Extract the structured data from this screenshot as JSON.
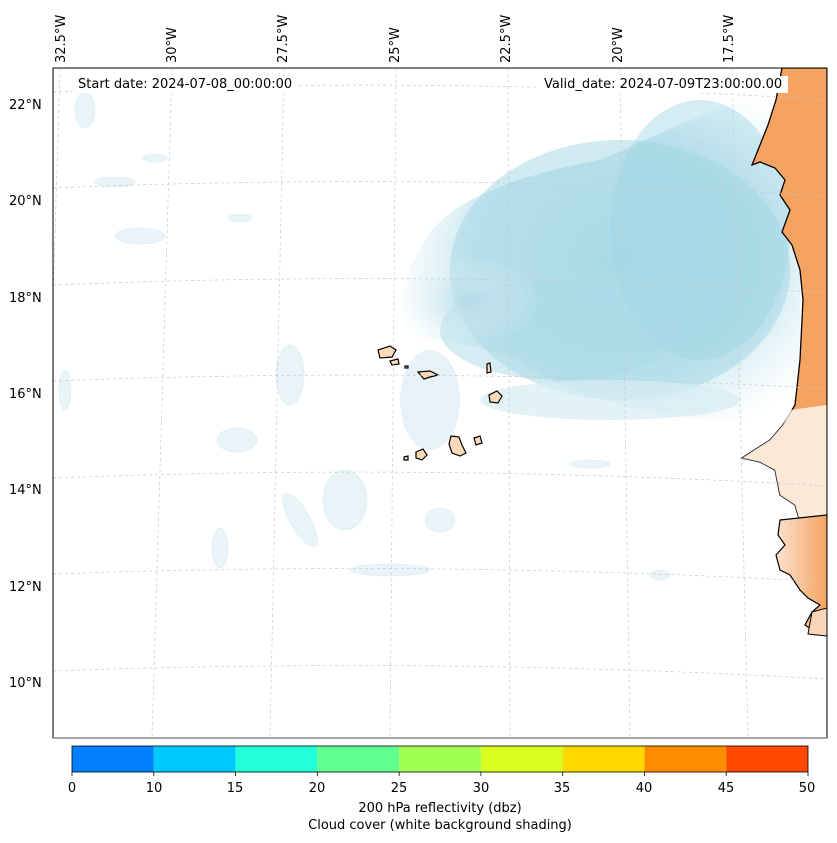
{
  "header": {
    "start_date": "Start date: 2024-07-08_00:00:00",
    "valid_date": "Valid_date: 2024-07-09T23:00:00.00"
  },
  "axes": {
    "longitude_labels": [
      "32.5°W",
      "30°W",
      "27.5°W",
      "25°W",
      "22.5°W",
      "20°W",
      "17.5°W"
    ],
    "latitude_labels": [
      "22°N",
      "20°N",
      "18°N",
      "16°N",
      "14°N",
      "12°N",
      "10°N"
    ]
  },
  "colorbar": {
    "ticks": [
      "0",
      "10",
      "15",
      "20",
      "25",
      "30",
      "35",
      "40",
      "45",
      "50"
    ],
    "colors": [
      "#0080ff",
      "#00c8ff",
      "#20ffd8",
      "#60ff90",
      "#a0ff50",
      "#d8ff20",
      "#ffd800",
      "#ff8c00",
      "#ff4800"
    ],
    "label_line1": "200 hPa reflectivity (dbz)",
    "label_line2": "Cloud cover (white background shading)"
  },
  "colors": {
    "land_africa": "#f4a460",
    "land_islands": "#fcd9b8",
    "cloud_cover": "#a8d8e6",
    "grid": "#c8c8c8"
  },
  "islands": [
    "Santo Antão",
    "São Vicente",
    "Santa Luzia",
    "São Nicolau",
    "Sal",
    "Boa Vista",
    "Maio",
    "Santiago",
    "Fogo",
    "Brava"
  ]
}
